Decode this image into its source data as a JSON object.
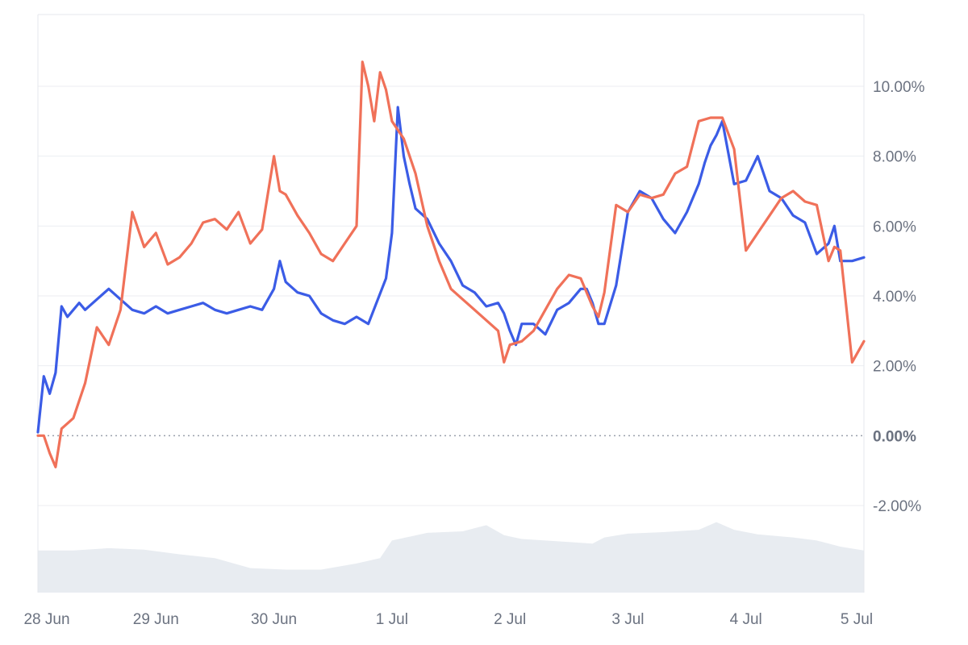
{
  "chart_data": {
    "type": "line",
    "title": "",
    "xlabel": "",
    "ylabel": "",
    "x_tick_labels": [
      "28 Jun",
      "29 Jun",
      "30 Jun",
      "1 Jul",
      "2 Jul",
      "3 Jul",
      "4 Jul",
      "5 Jul"
    ],
    "x_range_days": [
      0,
      7
    ],
    "y_tick_labels": [
      "10.00%",
      "8.00%",
      "6.00%",
      "4.00%",
      "2.00%",
      "0.00%",
      "-2.00%"
    ],
    "y_tick_values": [
      10,
      8,
      6,
      4,
      2,
      0,
      -2
    ],
    "ylim": [
      -2.0,
      10.0
    ],
    "y_unit": "%",
    "y_axis_side": "right",
    "grid": true,
    "zero_line": "dotted",
    "legend": "none",
    "series": [
      {
        "color": "#3b5ce6",
        "x": [
          0,
          0.05,
          0.1,
          0.15,
          0.2,
          0.25,
          0.3,
          0.35,
          0.4,
          0.5,
          0.6,
          0.7,
          0.8,
          0.9,
          1.0,
          1.1,
          1.2,
          1.3,
          1.4,
          1.5,
          1.6,
          1.7,
          1.8,
          1.9,
          2.0,
          2.05,
          2.1,
          2.2,
          2.3,
          2.4,
          2.5,
          2.6,
          2.7,
          2.8,
          2.95,
          3.0,
          3.05,
          3.1,
          3.15,
          3.2,
          3.3,
          3.4,
          3.5,
          3.6,
          3.7,
          3.8,
          3.9,
          3.95,
          4.0,
          4.05,
          4.1,
          4.2,
          4.3,
          4.4,
          4.5,
          4.6,
          4.65,
          4.7,
          4.75,
          4.8,
          4.9,
          5.0,
          5.1,
          5.2,
          5.3,
          5.4,
          5.5,
          5.6,
          5.65,
          5.7,
          5.75,
          5.8,
          5.9,
          6.0,
          6.1,
          6.2,
          6.3,
          6.4,
          6.5,
          6.6,
          6.7,
          6.75,
          6.8,
          6.9,
          7.0
        ],
        "values": [
          0.1,
          1.7,
          1.2,
          1.8,
          3.7,
          3.4,
          3.6,
          3.8,
          3.6,
          3.9,
          4.2,
          3.9,
          3.6,
          3.5,
          3.7,
          3.5,
          3.6,
          3.7,
          3.8,
          3.6,
          3.5,
          3.6,
          3.7,
          3.6,
          4.2,
          5.0,
          4.4,
          4.1,
          4.0,
          3.5,
          3.3,
          3.2,
          3.4,
          3.2,
          4.5,
          5.8,
          9.4,
          8.0,
          7.2,
          6.5,
          6.2,
          5.5,
          5.0,
          4.3,
          4.1,
          3.7,
          3.8,
          3.5,
          3.0,
          2.6,
          3.2,
          3.2,
          2.9,
          3.6,
          3.8,
          4.2,
          4.2,
          3.8,
          3.2,
          3.2,
          4.3,
          6.4,
          7.0,
          6.8,
          6.2,
          5.8,
          6.4,
          7.2,
          7.8,
          8.3,
          8.6,
          9.0,
          7.2,
          7.3,
          8.0,
          7.0,
          6.8,
          6.3,
          6.1,
          5.2,
          5.5,
          6.0,
          5.0,
          5.0,
          5.1
        ]
      },
      {
        "color": "#f07159",
        "x": [
          0,
          0.05,
          0.1,
          0.15,
          0.2,
          0.3,
          0.4,
          0.5,
          0.6,
          0.7,
          0.8,
          0.9,
          1.0,
          1.1,
          1.2,
          1.3,
          1.4,
          1.5,
          1.6,
          1.7,
          1.8,
          1.9,
          2.0,
          2.05,
          2.1,
          2.2,
          2.3,
          2.4,
          2.5,
          2.6,
          2.7,
          2.75,
          2.8,
          2.85,
          2.9,
          2.95,
          3.0,
          3.1,
          3.2,
          3.3,
          3.4,
          3.5,
          3.6,
          3.7,
          3.8,
          3.9,
          3.95,
          4.0,
          4.1,
          4.2,
          4.3,
          4.4,
          4.5,
          4.6,
          4.7,
          4.75,
          4.8,
          4.9,
          5.0,
          5.1,
          5.2,
          5.3,
          5.4,
          5.5,
          5.6,
          5.7,
          5.8,
          5.9,
          6.0,
          6.1,
          6.2,
          6.3,
          6.4,
          6.5,
          6.6,
          6.7,
          6.75,
          6.8,
          6.9,
          7.0
        ],
        "values": [
          0.0,
          0.0,
          -0.5,
          -0.9,
          0.2,
          0.5,
          1.5,
          3.1,
          2.6,
          3.6,
          6.4,
          5.4,
          5.8,
          4.9,
          5.1,
          5.5,
          6.1,
          6.2,
          5.9,
          6.4,
          5.5,
          5.9,
          8.0,
          7.0,
          6.9,
          6.3,
          5.8,
          5.2,
          5.0,
          5.5,
          6.0,
          10.7,
          10.0,
          9.0,
          10.4,
          9.9,
          9.0,
          8.5,
          7.5,
          6.0,
          5.0,
          4.2,
          3.9,
          3.6,
          3.3,
          3.0,
          2.1,
          2.6,
          2.7,
          3.0,
          3.6,
          4.2,
          4.6,
          4.5,
          3.7,
          3.4,
          4.1,
          6.6,
          6.4,
          6.9,
          6.8,
          6.9,
          7.5,
          7.7,
          9.0,
          9.1,
          9.1,
          8.2,
          5.3,
          5.8,
          6.3,
          6.8,
          7.0,
          6.7,
          6.6,
          5.0,
          5.4,
          5.3,
          2.1,
          2.7
        ]
      }
    ],
    "volume_area": {
      "color": "#e8ecf1",
      "x": [
        0,
        0.3,
        0.6,
        0.9,
        1.2,
        1.5,
        1.8,
        2.1,
        2.4,
        2.7,
        2.9,
        3.0,
        3.3,
        3.6,
        3.8,
        3.95,
        4.1,
        4.3,
        4.5,
        4.7,
        4.8,
        5.0,
        5.3,
        5.6,
        5.75,
        5.9,
        6.1,
        6.4,
        6.6,
        6.8,
        7.0
      ],
      "values": [
        0.55,
        0.55,
        0.58,
        0.56,
        0.5,
        0.45,
        0.32,
        0.3,
        0.3,
        0.38,
        0.45,
        0.68,
        0.78,
        0.8,
        0.88,
        0.75,
        0.7,
        0.68,
        0.66,
        0.64,
        0.72,
        0.77,
        0.79,
        0.82,
        0.92,
        0.82,
        0.76,
        0.72,
        0.68,
        0.6,
        0.55
      ]
    }
  }
}
